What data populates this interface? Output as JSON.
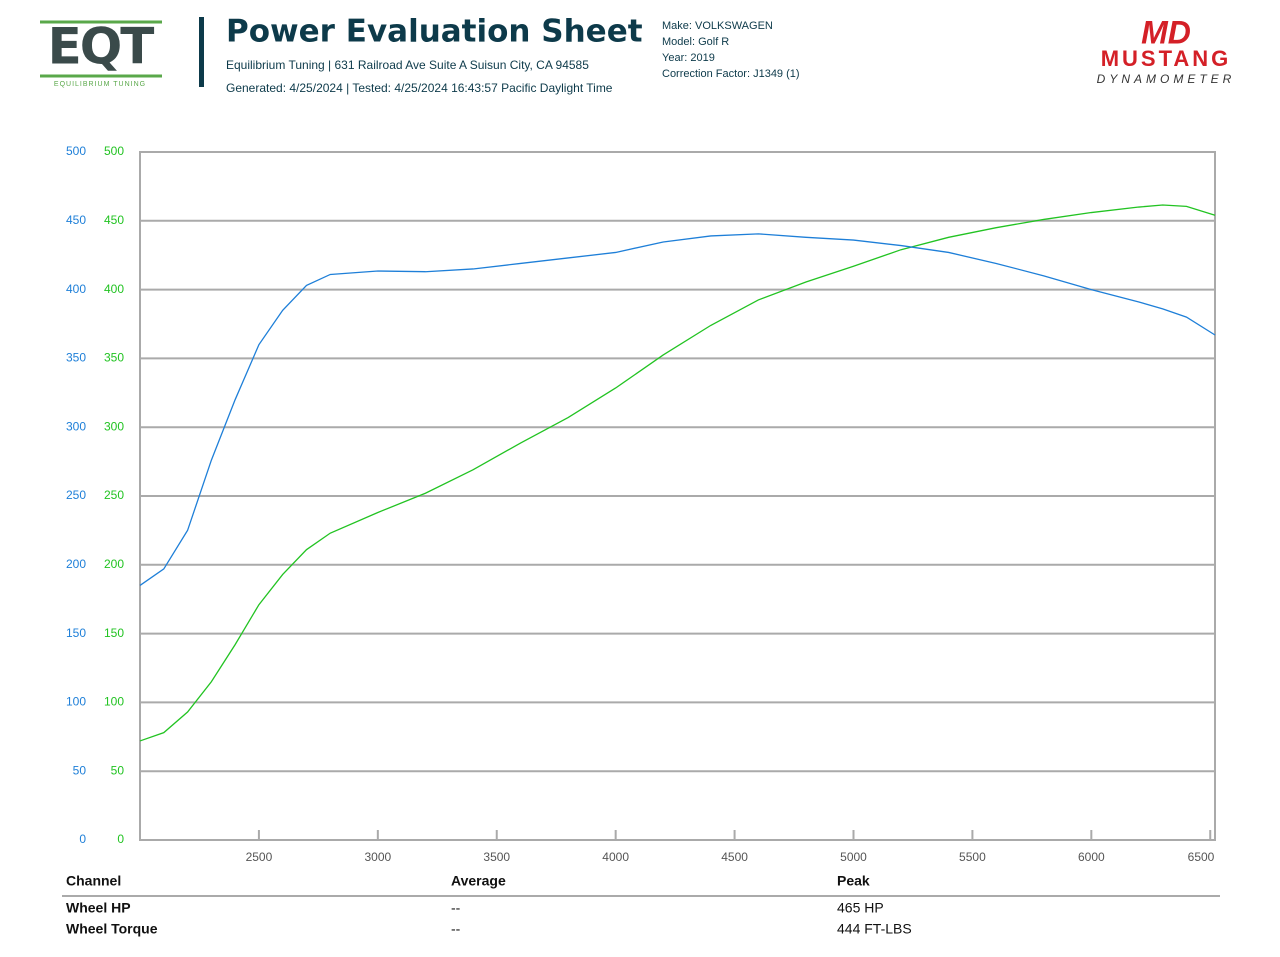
{
  "header": {
    "logo_left": "EQT",
    "logo_left_sub": "EQUILIBRIUM TUNING",
    "title": "Power Evaluation Sheet",
    "address": "Equilibrium Tuning | 631 Railroad Ave Suite A Suisun City, CA 94585",
    "dates": "Generated: 4/25/2024 | Tested: 4/25/2024 16:43:57 Pacific Daylight Time",
    "vehicle": [
      "Make: VOLKSWAGEN",
      "Model: Golf R",
      "Year: 2019",
      "Correction Factor: J1349 (1)"
    ],
    "logo_right_mark": "MD",
    "logo_right": "MUSTANG",
    "logo_right_sub": "DYNAMOMETER"
  },
  "chart_data": {
    "type": "line",
    "x": [
      2000,
      2100,
      2200,
      2300,
      2400,
      2500,
      2600,
      2700,
      2800,
      3000,
      3200,
      3400,
      3600,
      3800,
      4000,
      4200,
      4400,
      4600,
      4800,
      5000,
      5200,
      5400,
      5600,
      5800,
      6000,
      6200,
      6300,
      6400,
      6520
    ],
    "xlim": [
      2000,
      6520
    ],
    "xticks": [
      2500,
      3000,
      3500,
      4000,
      4500,
      5000,
      5500,
      6000,
      6500
    ],
    "ylim": [
      0,
      500
    ],
    "yticks": [
      0,
      50,
      100,
      150,
      200,
      250,
      300,
      350,
      400,
      450,
      500
    ],
    "y2lim": [
      0,
      500
    ],
    "y2ticks": [
      0,
      50,
      100,
      150,
      200,
      250,
      300,
      350,
      400,
      450,
      500
    ],
    "grid": true,
    "series": [
      {
        "name": "Wheel HP",
        "color": "#22c322",
        "axis": "y2",
        "values": [
          72,
          78,
          93,
          115,
          142,
          171,
          193,
          211,
          223,
          238,
          252,
          269,
          288.5,
          307,
          328.5,
          352.5,
          374,
          392.5,
          405.5,
          417,
          429,
          438,
          445,
          451,
          456,
          460,
          461.5,
          460.5,
          454
        ]
      },
      {
        "name": "Wheel Torque",
        "color": "#1e7fd8",
        "axis": "y",
        "values": [
          185,
          197,
          225,
          276,
          320,
          360,
          385,
          403,
          411,
          413.5,
          413,
          415,
          419,
          423,
          427,
          434.6,
          439,
          440.5,
          438,
          436,
          432,
          427,
          419,
          410,
          400,
          391,
          386,
          380,
          367
        ]
      }
    ]
  },
  "table": {
    "headers": [
      "Channel",
      "Average",
      "Peak"
    ],
    "rows": [
      {
        "average": "--",
        "peak": "465 HP"
      },
      {
        "average": "--",
        "peak": "444 FT-LBS"
      }
    ]
  }
}
